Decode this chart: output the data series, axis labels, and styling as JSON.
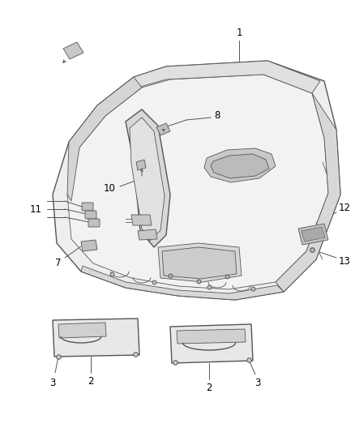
{
  "background_color": "#ffffff",
  "line_color": "#555555",
  "label_color": "#000000",
  "fig_width": 4.38,
  "fig_height": 5.33,
  "dpi": 100,
  "font_size": 8.5,
  "headliner_face": "#e8e8e8",
  "headliner_edge": "#f5f5f5",
  "headliner_dark": "#d0d0d0",
  "headliner_light": "#f0f0f0"
}
